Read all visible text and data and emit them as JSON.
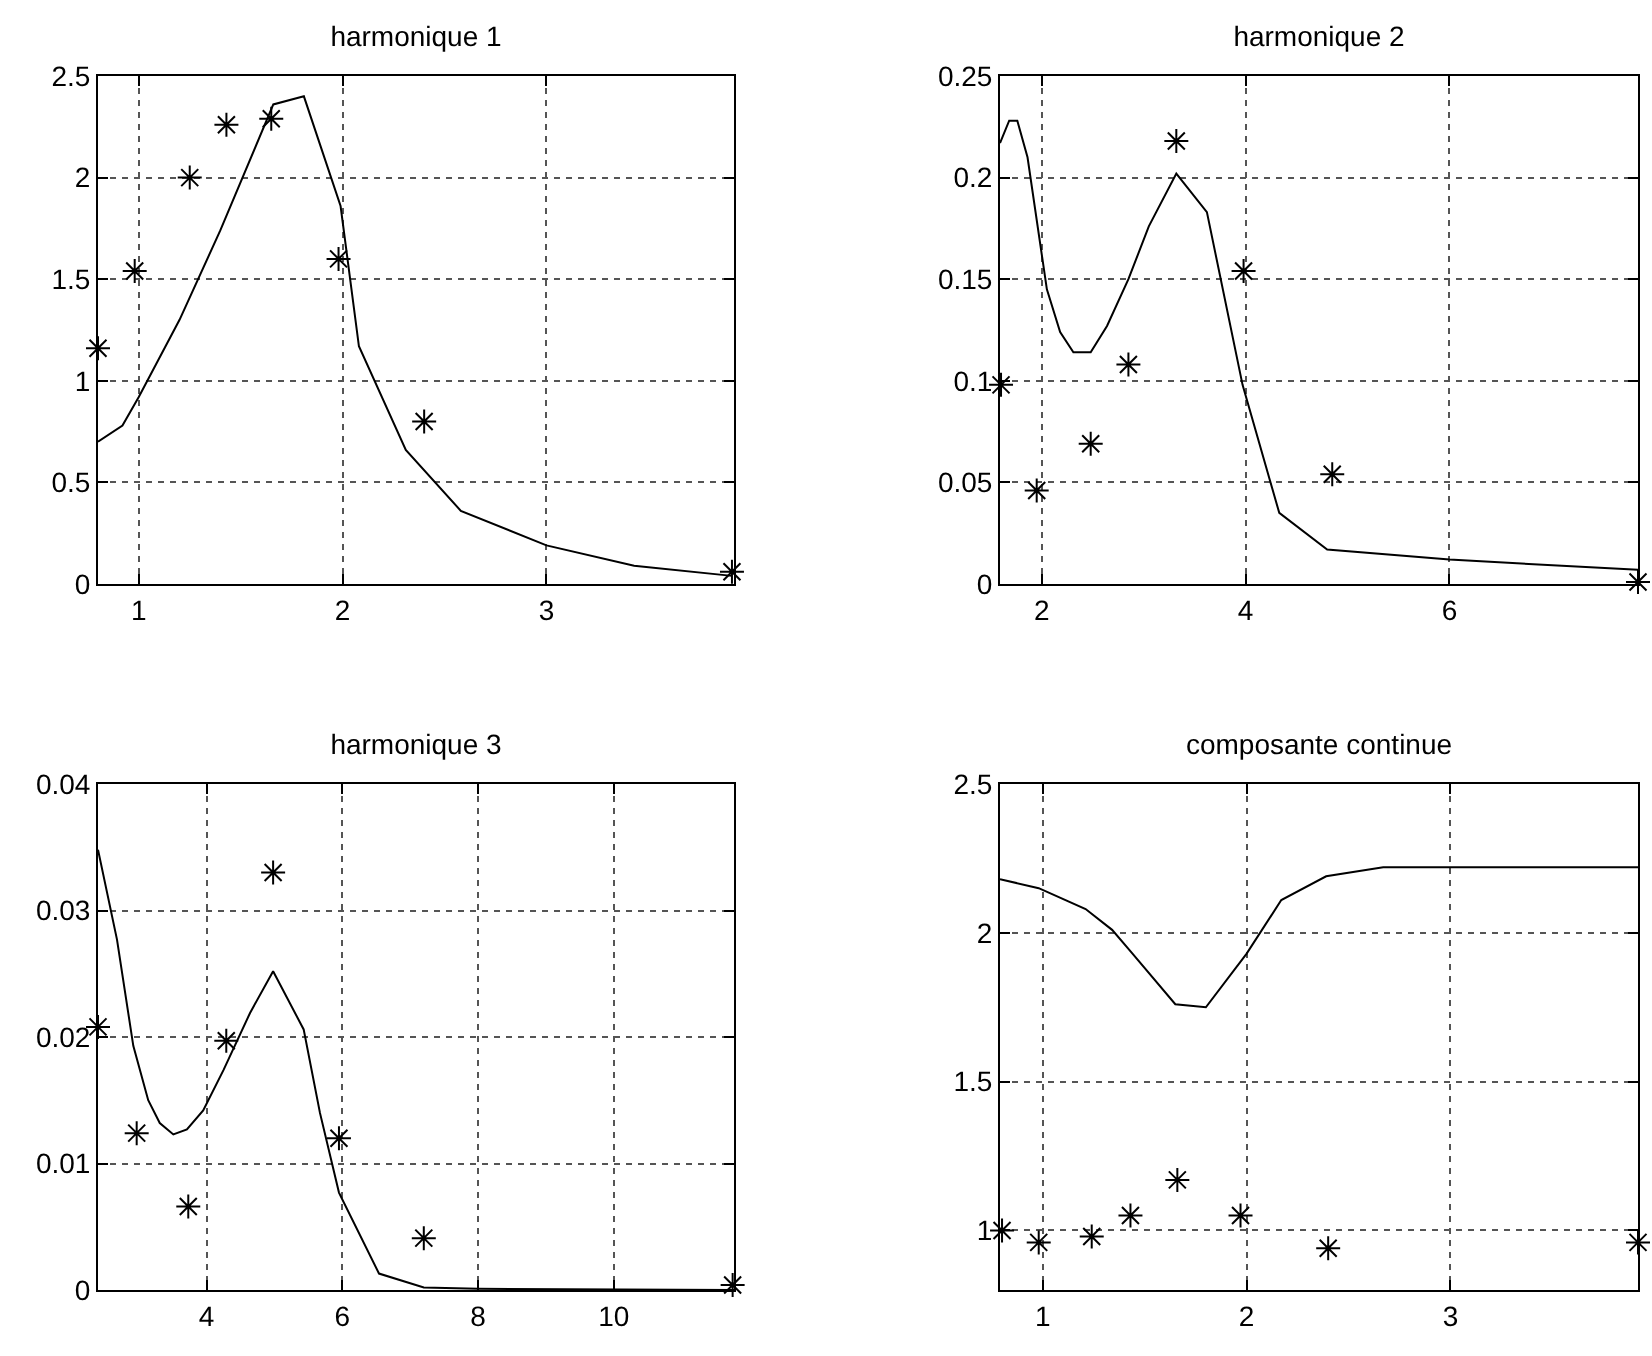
{
  "chart_data": [
    {
      "type": "line",
      "title": "harmonique 1",
      "xlim": [
        0.8,
        3.92
      ],
      "ylim": [
        0,
        2.5
      ],
      "xticks": [
        1,
        2,
        3
      ],
      "yticks": [
        0,
        0.5,
        1,
        1.5,
        2,
        2.5
      ],
      "grid": true,
      "series": [
        {
          "color": "#000000",
          "x": [
            0.8,
            0.92,
            1.0,
            1.2,
            1.4,
            1.66,
            1.81,
            1.99,
            2.08,
            2.31,
            2.58,
            3.0,
            3.43,
            3.91
          ],
          "values": [
            0.7,
            0.78,
            0.92,
            1.3,
            1.74,
            2.36,
            2.4,
            1.86,
            1.17,
            0.66,
            0.36,
            0.19,
            0.09,
            0.04
          ]
        },
        {
          "type": "scatter",
          "color": "#000000",
          "marker": "cross",
          "x": [
            0.8,
            0.98,
            1.25,
            1.43,
            1.65,
            1.98,
            2.4,
            3.91
          ],
          "values": [
            1.16,
            1.54,
            2.0,
            2.26,
            2.29,
            1.6,
            0.8,
            0.06
          ]
        }
      ]
    },
    {
      "type": "line",
      "title": "harmonique 2",
      "xlim": [
        1.59,
        7.85
      ],
      "ylim": [
        0,
        0.25
      ],
      "xticks": [
        2,
        4,
        6
      ],
      "yticks": [
        0,
        0.05,
        0.1,
        0.15,
        0.2,
        0.25
      ],
      "grid": true,
      "series": [
        {
          "color": "#000000",
          "x": [
            1.59,
            1.68,
            1.76,
            1.86,
            2.05,
            2.18,
            2.31,
            2.48,
            2.64,
            2.85,
            3.05,
            3.32,
            3.62,
            3.97,
            4.33,
            4.8,
            6.0,
            7.85
          ],
          "values": [
            0.217,
            0.228,
            0.228,
            0.21,
            0.145,
            0.124,
            0.114,
            0.114,
            0.127,
            0.15,
            0.176,
            0.202,
            0.183,
            0.098,
            0.035,
            0.017,
            0.012,
            0.007
          ]
        },
        {
          "type": "scatter",
          "color": "#000000",
          "marker": "cross",
          "x": [
            1.6,
            1.95,
            2.48,
            2.85,
            3.32,
            3.98,
            4.85,
            7.85
          ],
          "values": [
            0.098,
            0.046,
            0.069,
            0.108,
            0.218,
            0.154,
            0.054,
            0.001
          ]
        }
      ]
    },
    {
      "type": "line",
      "title": "harmonique 3",
      "xlim": [
        2.4,
        11.77
      ],
      "ylim": [
        0,
        0.04
      ],
      "xticks": [
        4,
        6,
        8,
        10
      ],
      "yticks": [
        0,
        0.01,
        0.02,
        0.03,
        0.04
      ],
      "grid": true,
      "series": [
        {
          "color": "#000000",
          "x": [
            2.4,
            2.68,
            2.92,
            3.14,
            3.31,
            3.51,
            3.71,
            3.95,
            4.25,
            4.64,
            4.98,
            5.43,
            5.67,
            5.95,
            6.54,
            7.2,
            8.0,
            11.77
          ],
          "values": [
            0.0348,
            0.0277,
            0.0193,
            0.015,
            0.0132,
            0.0123,
            0.0127,
            0.0142,
            0.0174,
            0.0219,
            0.0252,
            0.0206,
            0.014,
            0.0077,
            0.0013,
            0.0002,
            0.0001,
            0
          ]
        },
        {
          "type": "scatter",
          "color": "#000000",
          "marker": "cross",
          "x": [
            2.4,
            2.97,
            3.73,
            4.29,
            4.98,
            5.95,
            7.2,
            11.75
          ],
          "values": [
            0.0208,
            0.0124,
            0.0066,
            0.0197,
            0.033,
            0.012,
            0.0041,
            0.0004
          ]
        }
      ]
    },
    {
      "type": "line",
      "title": "composante continue",
      "xlim": [
        0.79,
        3.92
      ],
      "ylim": [
        0.8,
        2.5
      ],
      "xticks": [
        1,
        2,
        3
      ],
      "yticks": [
        1,
        1.5,
        2,
        2.5
      ],
      "grid": true,
      "series": [
        {
          "color": "#000000",
          "x": [
            0.79,
            0.98,
            1.21,
            1.34,
            1.44,
            1.65,
            1.8,
            2.0,
            2.17,
            2.39,
            2.67,
            3.0,
            3.92
          ],
          "values": [
            2.18,
            2.15,
            2.08,
            2.01,
            1.93,
            1.76,
            1.75,
            1.93,
            2.11,
            2.19,
            2.22,
            2.22,
            2.22
          ]
        },
        {
          "type": "scatter",
          "color": "#000000",
          "marker": "cross",
          "x": [
            0.8,
            0.98,
            1.24,
            1.43,
            1.66,
            1.97,
            2.4,
            3.92
          ],
          "values": [
            1.0,
            0.96,
            0.98,
            1.05,
            1.17,
            1.05,
            0.94,
            0.96
          ]
        }
      ]
    }
  ]
}
